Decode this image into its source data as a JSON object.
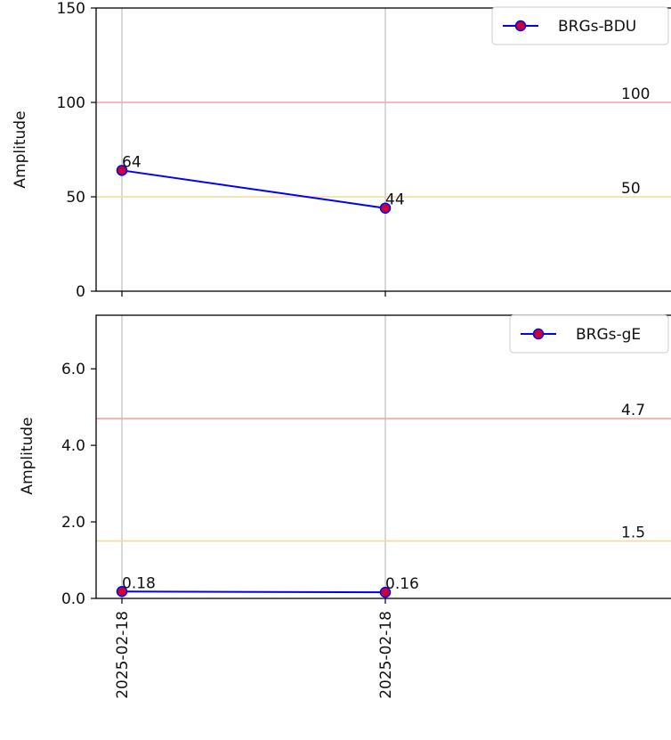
{
  "colors": {
    "line": "#0000ff",
    "marker_fill": "#cc0033",
    "threshold_high": "#f4a6a6",
    "threshold_low": "#f6d8a0",
    "grid": "#b0b0b0",
    "axis": "#000000"
  },
  "chart_data": [
    {
      "type": "line",
      "title": "",
      "xlabel": "",
      "ylabel": "Amplitude",
      "ylim": [
        0,
        150
      ],
      "yticks": [
        "0",
        "50",
        "100",
        "150"
      ],
      "ytick_values": [
        0,
        50,
        100,
        150
      ],
      "x": [
        "2025-02-18",
        "2025-02-18"
      ],
      "series": [
        {
          "name": "BRGs-BDU",
          "values": [
            64,
            44
          ],
          "labels": [
            "64",
            "44"
          ]
        }
      ],
      "thresholds": [
        {
          "value": 100,
          "label": "100",
          "color": "#f4a6a6"
        },
        {
          "value": 50,
          "label": "50",
          "color": "#f6d8a0"
        }
      ],
      "legend": "top-right",
      "grid": "vertical"
    },
    {
      "type": "line",
      "title": "",
      "xlabel": "",
      "ylabel": "Amplitude",
      "ylim": [
        0,
        7.4
      ],
      "yticks": [
        "0.0",
        "2.0",
        "4.0",
        "6.0"
      ],
      "ytick_values": [
        0,
        2,
        4,
        6
      ],
      "x": [
        "2025-02-18",
        "2025-02-18"
      ],
      "xtick_labels": [
        "2025-02-18",
        "2025-02-18"
      ],
      "series": [
        {
          "name": "BRGs-gE",
          "values": [
            0.18,
            0.16
          ],
          "labels": [
            "0.18",
            "0.16"
          ]
        }
      ],
      "thresholds": [
        {
          "value": 4.7,
          "label": "4.7",
          "color": "#f4a6a6"
        },
        {
          "value": 1.5,
          "label": "1.5",
          "color": "#f6d8a0"
        }
      ],
      "legend": "top-right",
      "grid": "vertical"
    }
  ]
}
